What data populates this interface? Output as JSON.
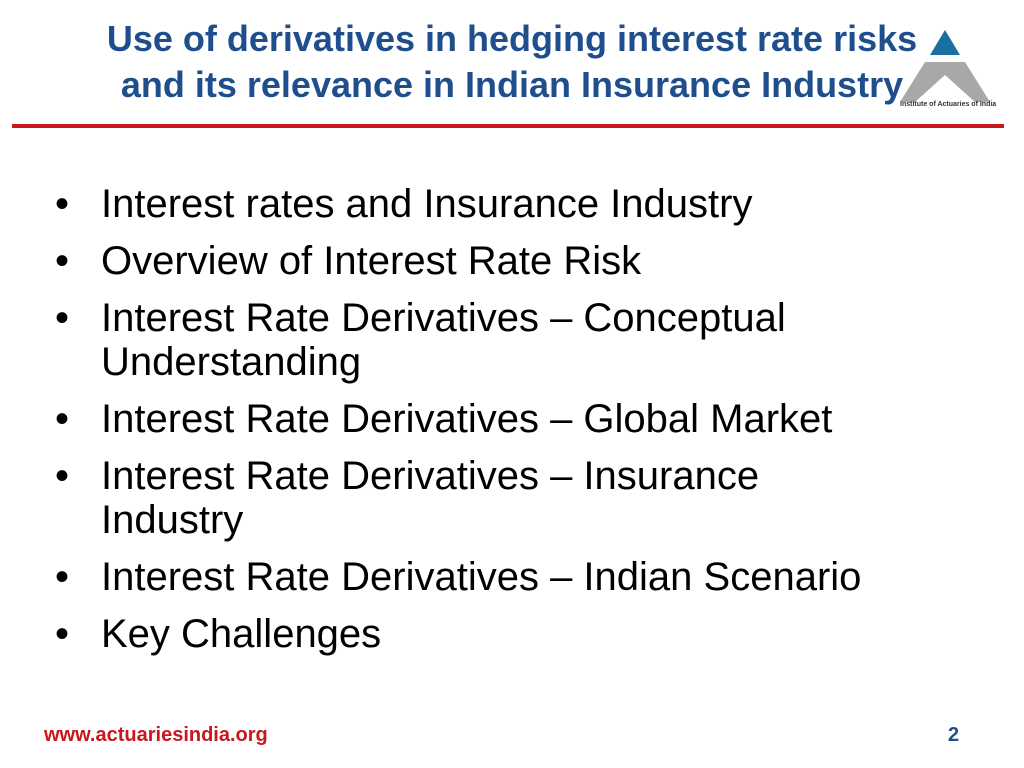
{
  "title": {
    "line1": "Use of derivatives in hedging interest rate risks",
    "line2": "and its relevance in Indian Insurance Industry"
  },
  "logo": {
    "text": "Institute of Actuaries of India"
  },
  "bullets": [
    "Interest rates and Insurance Industry",
    "Overview of Interest Rate Risk",
    "Interest Rate Derivatives – Conceptual Understanding",
    "Interest Rate Derivatives – Global Market",
    "Interest Rate Derivatives – Insurance Industry",
    "Interest Rate Derivatives – Indian Scenario",
    "Key Challenges"
  ],
  "footer": {
    "url": "www.actuariesindia.org",
    "page": "2"
  },
  "colors": {
    "title": "#1f4e8c",
    "accent": "#c8171e"
  }
}
